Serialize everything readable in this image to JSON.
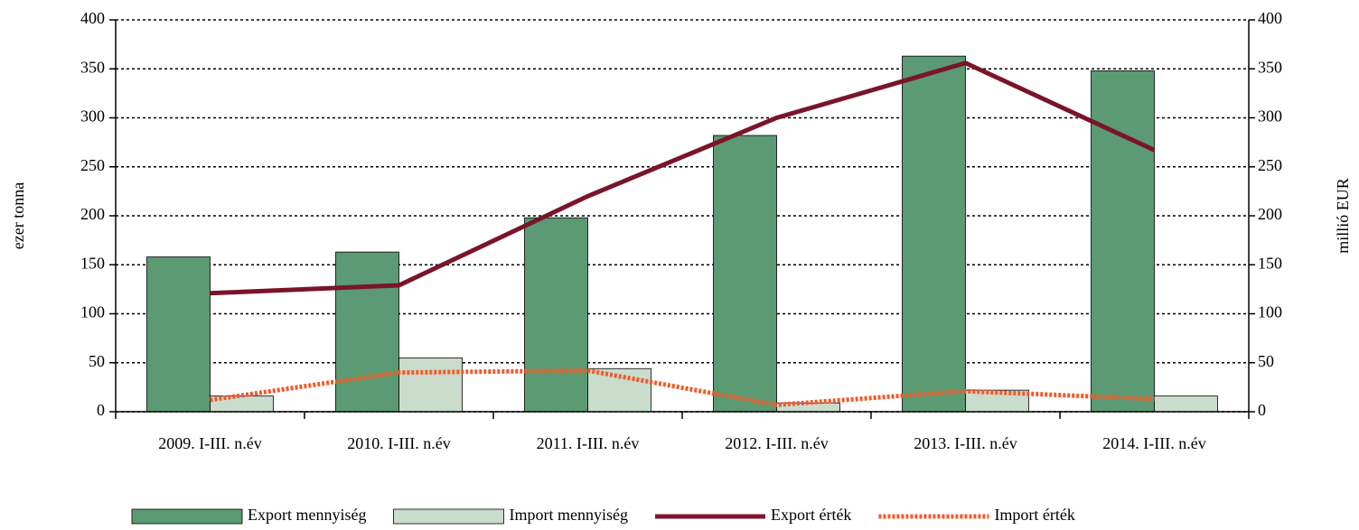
{
  "chart_data": {
    "type": "bar-line",
    "categories": [
      "2009. I-III. n.év",
      "2010. I-III. n.év",
      "2011. I-III. n.év",
      "2012. I-III. n.év",
      "2013. I-III. n.év",
      "2014. I-III. n.év"
    ],
    "series": [
      {
        "name": "Export mennyiség",
        "type": "bar",
        "color": "#5b9a72",
        "values": [
          158,
          163,
          198,
          282,
          363,
          348
        ]
      },
      {
        "name": "Import mennyiség",
        "type": "bar",
        "color": "#cadccc",
        "values": [
          16,
          55,
          44,
          9,
          22,
          16
        ]
      },
      {
        "name": "Export érték",
        "type": "line",
        "axis": "y2",
        "color": "#7a1529",
        "line_style": "solid",
        "values": [
          121,
          129,
          220,
          300,
          356,
          267
        ]
      },
      {
        "name": "Import érték",
        "type": "line",
        "axis": "y2",
        "color": "#f15a29",
        "line_style": "dotted",
        "values": [
          12,
          40,
          42,
          7,
          21,
          13
        ]
      }
    ],
    "ylabel": "ezer tonna",
    "y2label": "millió EUR",
    "ylim": [
      0,
      400
    ],
    "yticks": [
      0,
      50,
      100,
      150,
      200,
      250,
      300,
      350,
      400
    ],
    "y2lim": [
      0,
      400
    ],
    "y2ticks": [
      0,
      50,
      100,
      150,
      200,
      250,
      300,
      350,
      400
    ],
    "grid": true,
    "legend": "bottom"
  }
}
